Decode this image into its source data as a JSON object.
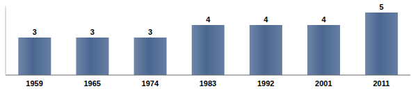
{
  "chart_data": {
    "type": "bar",
    "categories": [
      "1959",
      "1965",
      "1974",
      "1983",
      "1992",
      "2001",
      "2011"
    ],
    "values": [
      3,
      3,
      3,
      4,
      4,
      4,
      5
    ],
    "color": "#4a6791",
    "ylim": [
      0,
      5.5
    ],
    "grid": false,
    "data_labels": true,
    "tick_labels": "x"
  }
}
